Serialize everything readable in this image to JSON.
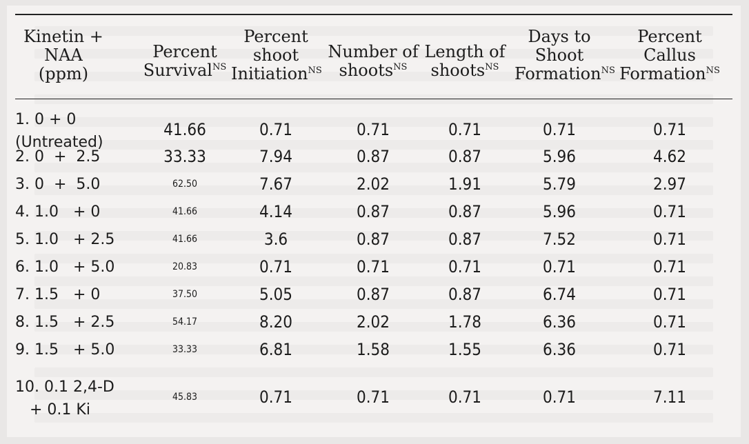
{
  "headers": {
    "treatment": [
      "Kinetin +",
      "NAA",
      "(ppm)"
    ],
    "survival": {
      "lines": [
        "Percent",
        "Survival"
      ],
      "sup": "NS"
    },
    "initiation": {
      "lines": [
        "Percent",
        "shoot",
        "Initiation"
      ],
      "sup": "NS"
    },
    "number": {
      "lines": [
        "Number of",
        "shoots"
      ],
      "sup": "NS"
    },
    "length": {
      "lines": [
        "Length of",
        "shoots"
      ],
      "sup": "NS"
    },
    "days": {
      "lines": [
        "Days to",
        "Shoot",
        "Formation"
      ],
      "sup": "NS"
    },
    "callus": {
      "lines": [
        "Percent",
        "Callus",
        "Formation"
      ],
      "sup": "NS"
    }
  },
  "rows": [
    {
      "treatment": [
        "1. 0 + 0",
        "(Untreated)"
      ],
      "survival": "41.66",
      "survival_small": false,
      "initiation": "0.71",
      "number": "0.71",
      "length": "0.71",
      "days": "0.71",
      "callus": "0.71"
    },
    {
      "treatment": [
        "2. 0  +  2.5"
      ],
      "survival": "33.33",
      "survival_small": false,
      "initiation": "7.94",
      "number": "0.87",
      "length": "0.87",
      "days": "5.96",
      "callus": "4.62"
    },
    {
      "treatment": [
        "3. 0  +  5.0"
      ],
      "survival": "62.50",
      "survival_small": true,
      "initiation": "7.67",
      "number": "2.02",
      "length": "1.91",
      "days": "5.79",
      "callus": "2.97"
    },
    {
      "treatment": [
        "4. 1.0   + 0"
      ],
      "survival": "41.66",
      "survival_small": true,
      "initiation": "4.14",
      "number": "0.87",
      "length": "0.87",
      "days": "5.96",
      "callus": "0.71"
    },
    {
      "treatment": [
        "5. 1.0   + 2.5"
      ],
      "survival": "41.66",
      "survival_small": true,
      "initiation": "3.6",
      "number": "0.87",
      "length": "0.87",
      "days": "7.52",
      "callus": "0.71"
    },
    {
      "treatment": [
        "6. 1.0   + 5.0"
      ],
      "survival": "20.83",
      "survival_small": true,
      "initiation": "0.71",
      "number": "0.71",
      "length": "0.71",
      "days": "0.71",
      "callus": "0.71"
    },
    {
      "treatment": [
        "7. 1.5   + 0"
      ],
      "survival": "37.50",
      "survival_small": true,
      "initiation": "5.05",
      "number": "0.87",
      "length": "0.87",
      "days": "6.74",
      "callus": "0.71"
    },
    {
      "treatment": [
        "8. 1.5   + 2.5"
      ],
      "survival": "54.17",
      "survival_small": true,
      "initiation": "8.20",
      "number": "2.02",
      "length": "1.78",
      "days": "6.36",
      "callus": "0.71"
    },
    {
      "treatment": [
        "9. 1.5   + 5.0"
      ],
      "survival": "33.33",
      "survival_small": true,
      "initiation": "6.81",
      "number": "1.58",
      "length": "1.55",
      "days": "6.36",
      "callus": "0.71"
    },
    {
      "treatment": [
        "10. 0.1 2,4-D",
        "   + 0.1 Ki"
      ],
      "survival": "45.83",
      "survival_small": true,
      "initiation": "0.71",
      "number": "0.71",
      "length": "0.71",
      "days": "0.71",
      "callus": "7.11"
    }
  ]
}
